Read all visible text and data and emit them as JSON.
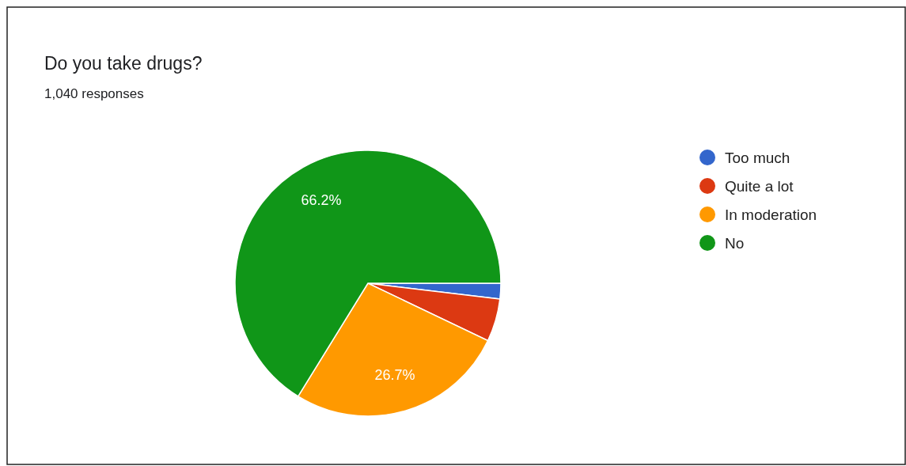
{
  "chart_data": {
    "type": "pie",
    "title": "Do you take drugs?",
    "subtitle": "1,040 responses",
    "categories": [
      "Too much",
      "Quite a lot",
      "In moderation",
      "No"
    ],
    "values": [
      1.9,
      5.2,
      26.7,
      66.2
    ],
    "value_labels": [
      null,
      null,
      "26.7%",
      "66.2%"
    ],
    "colors": [
      "#3366cc",
      "#dc3912",
      "#ff9900",
      "#109618"
    ],
    "legend": "right"
  }
}
